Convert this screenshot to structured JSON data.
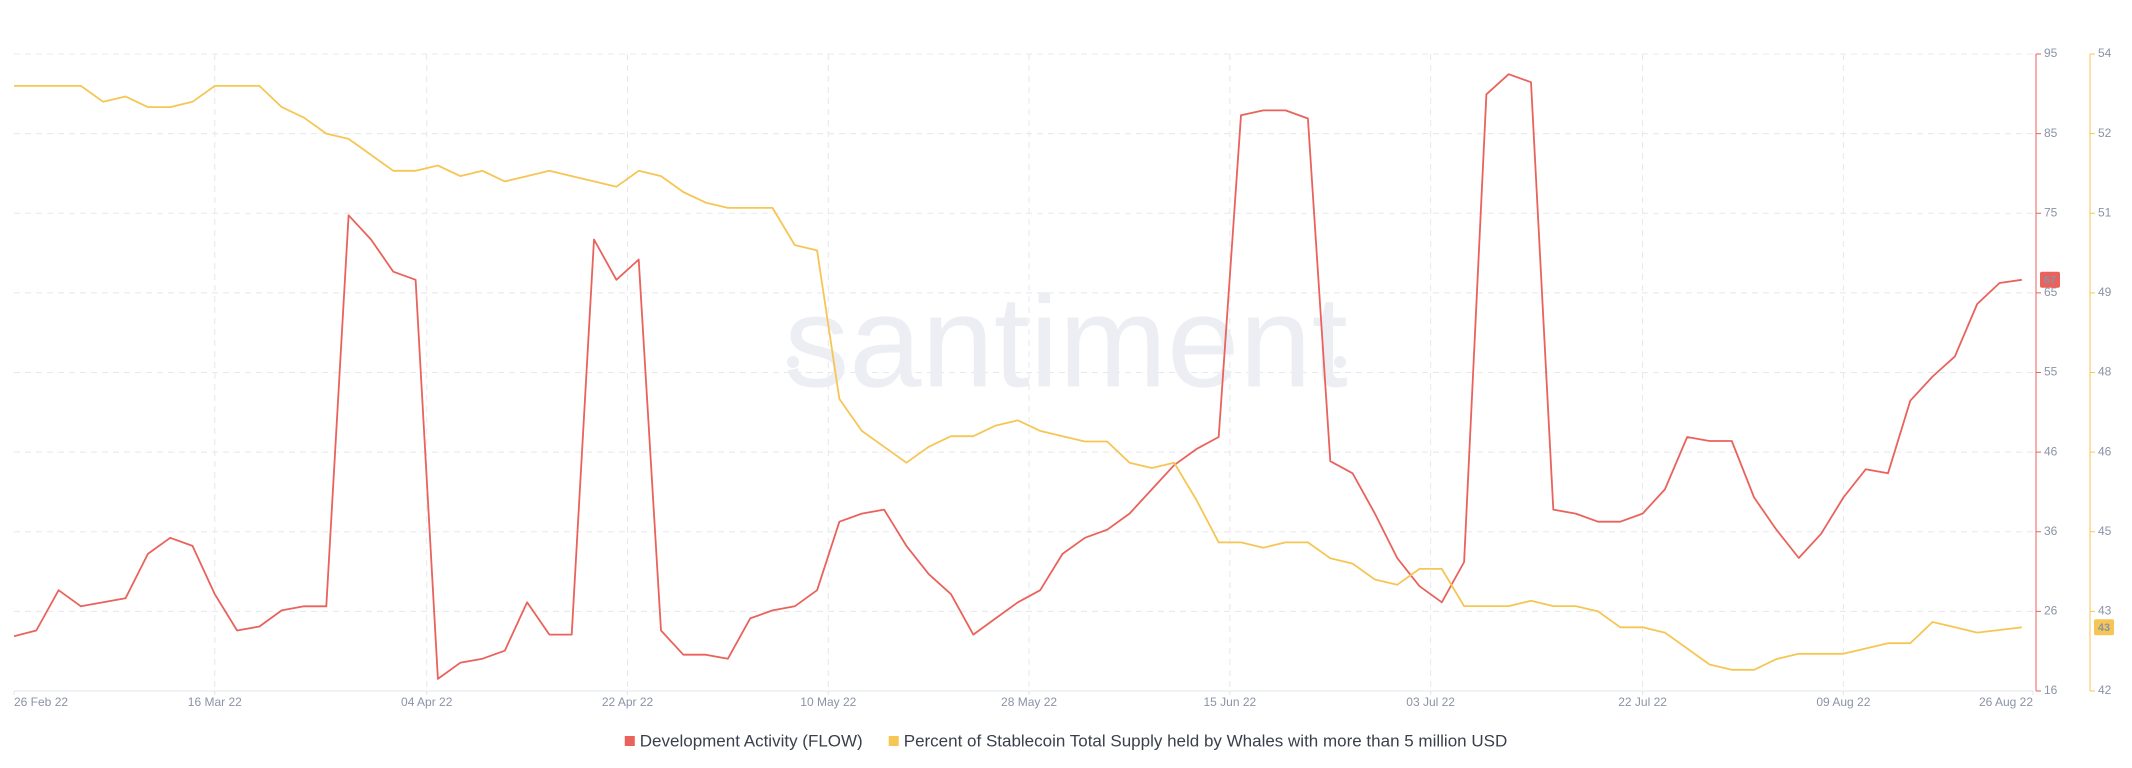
{
  "chart_data": {
    "type": "line",
    "watermark": "santiment",
    "xlim": [
      "2022-02-26",
      "2022-08-26"
    ],
    "xticks": [
      {
        "value": "2022-02-26",
        "label": "26 Feb 22"
      },
      {
        "value": "2022-03-16",
        "label": "16 Mar 22"
      },
      {
        "value": "2022-04-04",
        "label": "04 Apr 22"
      },
      {
        "value": "2022-04-22",
        "label": "22 Apr 22"
      },
      {
        "value": "2022-05-10",
        "label": "10 May 22"
      },
      {
        "value": "2022-05-28",
        "label": "28 May 22"
      },
      {
        "value": "2022-06-15",
        "label": "15 Jun 22"
      },
      {
        "value": "2022-07-03",
        "label": "03 Jul 22"
      },
      {
        "value": "2022-07-22",
        "label": "22 Jul 22"
      },
      {
        "value": "2022-08-09",
        "label": "09 Aug 22"
      },
      {
        "value": "2022-08-26",
        "label": "26 Aug 22"
      }
    ],
    "ylim": [
      16,
      95
    ],
    "yticks": [
      16,
      {
        "value": 25.875,
        "label": "26"
      },
      {
        "value": 35.75,
        "label": "36"
      },
      {
        "value": 45.625,
        "label": "46"
      },
      {
        "value": 55.5,
        "label": "55"
      },
      {
        "value": 65.375,
        "label": "65"
      },
      {
        "value": 75.25,
        "label": "75"
      },
      {
        "value": 85.125,
        "label": "85"
      },
      95
    ],
    "y2lim": [
      42,
      54
    ],
    "y2ticks": [
      42,
      {
        "value": 43.5,
        "label": "43"
      },
      45,
      {
        "value": 46.5,
        "label": "46"
      },
      48,
      {
        "value": 49.5,
        "label": "49"
      },
      51,
      {
        "value": 52.5,
        "label": "52"
      },
      54
    ],
    "grid": true,
    "legend": "bottom",
    "x": [
      "2022-02-26",
      "2022-02-28",
      "2022-03-02",
      "2022-03-04",
      "2022-03-06",
      "2022-03-08",
      "2022-03-10",
      "2022-03-12",
      "2022-03-14",
      "2022-03-16",
      "2022-03-18",
      "2022-03-20",
      "2022-03-22",
      "2022-03-24",
      "2022-03-26",
      "2022-03-28",
      "2022-03-30",
      "2022-04-01",
      "2022-04-03",
      "2022-04-05",
      "2022-04-07",
      "2022-04-09",
      "2022-04-11",
      "2022-04-13",
      "2022-04-15",
      "2022-04-17",
      "2022-04-19",
      "2022-04-21",
      "2022-04-23",
      "2022-04-25",
      "2022-04-27",
      "2022-04-29",
      "2022-05-01",
      "2022-05-03",
      "2022-05-05",
      "2022-05-07",
      "2022-05-09",
      "2022-05-11",
      "2022-05-13",
      "2022-05-15",
      "2022-05-17",
      "2022-05-19",
      "2022-05-21",
      "2022-05-23",
      "2022-05-25",
      "2022-05-27",
      "2022-05-29",
      "2022-05-31",
      "2022-06-02",
      "2022-06-04",
      "2022-06-06",
      "2022-06-08",
      "2022-06-10",
      "2022-06-12",
      "2022-06-14",
      "2022-06-16",
      "2022-06-18",
      "2022-06-20",
      "2022-06-22",
      "2022-06-24",
      "2022-06-26",
      "2022-06-28",
      "2022-06-30",
      "2022-07-02",
      "2022-07-04",
      "2022-07-06",
      "2022-07-08",
      "2022-07-10",
      "2022-07-12",
      "2022-07-14",
      "2022-07-16",
      "2022-07-18",
      "2022-07-20",
      "2022-07-22",
      "2022-07-24",
      "2022-07-26",
      "2022-07-28",
      "2022-07-30",
      "2022-08-01",
      "2022-08-03",
      "2022-08-05",
      "2022-08-07",
      "2022-08-09",
      "2022-08-11",
      "2022-08-13",
      "2022-08-15",
      "2022-08-17",
      "2022-08-19",
      "2022-08-21",
      "2022-08-23",
      "2022-08-25"
    ],
    "series": [
      {
        "name": "Development Activity (FLOW)",
        "color": "#e9625c",
        "axis": "y",
        "last_label": "67",
        "values": [
          22.8,
          23.5,
          28.5,
          26.5,
          27,
          27.5,
          33,
          35,
          34,
          28,
          23.5,
          24,
          26,
          26.5,
          26.5,
          75,
          72,
          68,
          67,
          17.5,
          19.5,
          20,
          21,
          27,
          23,
          23,
          72,
          67,
          69.5,
          23.5,
          20.5,
          20.5,
          20,
          25,
          26,
          26.5,
          28.5,
          37,
          38,
          38.5,
          34,
          30.5,
          28,
          23,
          25,
          27,
          28.5,
          33,
          35,
          36,
          38,
          41,
          44,
          46,
          47.5,
          87.4,
          88,
          88,
          87,
          44.5,
          43,
          38,
          32.5,
          29,
          27,
          32,
          90,
          92.5,
          91.5,
          38.5,
          38,
          37,
          37,
          38,
          41,
          47.5,
          47,
          47,
          40,
          36,
          32.5,
          35.5,
          40,
          43.5,
          43,
          52,
          55,
          57.5,
          64,
          66.6,
          67
        ]
      },
      {
        "name": "Percent of Stablecoin Total Supply held by Whales with more than 5 million USD",
        "color": "#f6c655",
        "axis": "y2",
        "last_label": "43",
        "values": [
          53.4,
          53.4,
          53.4,
          53.4,
          53.1,
          53.2,
          53.0,
          53.0,
          53.1,
          53.4,
          53.4,
          53.4,
          53.0,
          52.8,
          52.5,
          52.4,
          52.1,
          51.8,
          51.8,
          51.9,
          51.7,
          51.8,
          51.6,
          51.7,
          51.8,
          51.7,
          51.6,
          51.5,
          51.8,
          51.7,
          51.4,
          51.2,
          51.1,
          51.1,
          51.1,
          50.4,
          50.3,
          47.5,
          46.9,
          46.6,
          46.3,
          46.6,
          46.8,
          46.8,
          47.0,
          47.1,
          46.9,
          46.8,
          46.7,
          46.7,
          46.3,
          46.2,
          46.3,
          45.6,
          44.8,
          44.8,
          44.7,
          44.8,
          44.8,
          44.5,
          44.4,
          44.1,
          44.0,
          44.3,
          44.3,
          43.6,
          43.6,
          43.6,
          43.7,
          43.6,
          43.6,
          43.5,
          43.2,
          43.2,
          43.1,
          42.8,
          42.5,
          42.4,
          42.4,
          42.6,
          42.7,
          42.7,
          42.7,
          42.8,
          42.9,
          42.9,
          43.3,
          43.2,
          43.1,
          43.15,
          43.2
        ]
      }
    ]
  }
}
